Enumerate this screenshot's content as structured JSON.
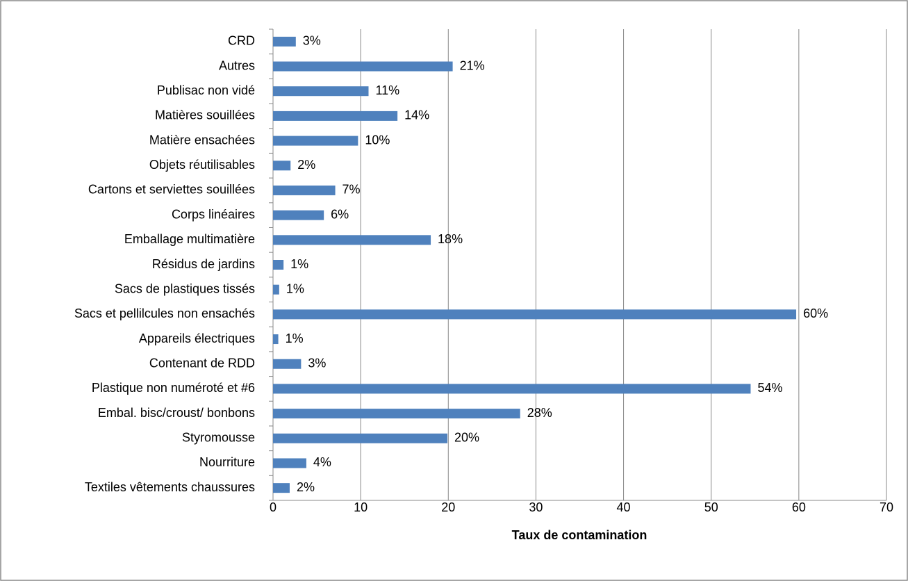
{
  "chart_data": {
    "type": "bar",
    "orientation": "horizontal",
    "x_label": "Taux de contamination",
    "categories": [
      "CRD",
      "Autres",
      "Publisac non vidé",
      "Matières souillées",
      "Matière ensachées",
      "Objets réutilisables",
      "Cartons et serviettes souillées",
      "Corps linéaires",
      "Emballage multimatière",
      "Résidus de jardins",
      "Sacs de plastiques tissés",
      "Sacs et pellilcules non ensachés",
      "Appareils électriques",
      "Contenant de RDD",
      "Plastique non numéroté et #6",
      "Embal. bisc/croust/ bonbons",
      "Styromousse",
      "Nourriture",
      "Textiles vêtements chaussures"
    ],
    "values": [
      2.6,
      20.5,
      10.9,
      14.2,
      9.7,
      2.0,
      7.1,
      5.8,
      18.0,
      1.2,
      0.7,
      59.7,
      0.6,
      3.2,
      54.5,
      28.2,
      19.9,
      3.8,
      1.9
    ],
    "value_labels": [
      "3%",
      "21%",
      "11%",
      "14%",
      "10%",
      "2%",
      "7%",
      "6%",
      "18%",
      "1%",
      "1%",
      "60%",
      "1%",
      "3%",
      "54%",
      "28%",
      "20%",
      "4%",
      "2%"
    ],
    "color": "#4f81bd",
    "xlim": [
      0,
      70
    ],
    "xticks": [
      0,
      10,
      20,
      30,
      40,
      50,
      60,
      70
    ],
    "grid": true
  }
}
